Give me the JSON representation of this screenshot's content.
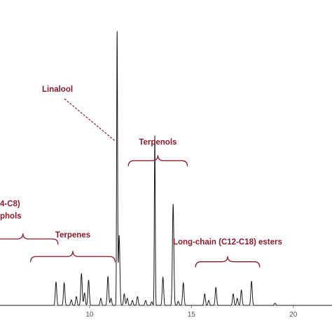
{
  "chart_data": {
    "type": "line",
    "title": "",
    "xlabel": "",
    "ylabel": "",
    "xlim": [
      5.6,
      21.9
    ],
    "ylim": [
      0,
      100
    ],
    "grid": false,
    "x_ticks": [
      {
        "value": 10,
        "label": "10"
      },
      {
        "value": 15,
        "label": "15"
      },
      {
        "value": 20,
        "label": "20"
      }
    ],
    "series": [
      {
        "peaks": [
          {
            "x": 8.35,
            "y": 8.5
          },
          {
            "x": 8.75,
            "y": 8.2
          },
          {
            "x": 9.1,
            "y": 2.0
          },
          {
            "x": 9.35,
            "y": 3.2
          },
          {
            "x": 9.6,
            "y": 11.6
          },
          {
            "x": 9.75,
            "y": 4.5
          },
          {
            "x": 9.95,
            "y": 9.2
          },
          {
            "x": 10.55,
            "y": 2.6
          },
          {
            "x": 10.9,
            "y": 10.5
          },
          {
            "x": 11.05,
            "y": 2.6
          },
          {
            "x": 11.35,
            "y": 100
          },
          {
            "x": 11.45,
            "y": 25.6
          },
          {
            "x": 11.7,
            "y": 4.2
          },
          {
            "x": 11.85,
            "y": 2.6
          },
          {
            "x": 12.1,
            "y": 1.8
          },
          {
            "x": 12.35,
            "y": 3.2
          },
          {
            "x": 12.75,
            "y": 1.8
          },
          {
            "x": 13.05,
            "y": 1.3
          },
          {
            "x": 13.2,
            "y": 61.9
          },
          {
            "x": 13.6,
            "y": 10.2
          },
          {
            "x": 14.1,
            "y": 36.9
          },
          {
            "x": 14.35,
            "y": 1.5
          },
          {
            "x": 14.6,
            "y": 8.2
          },
          {
            "x": 15.65,
            "y": 4.2
          },
          {
            "x": 15.85,
            "y": 1.8
          },
          {
            "x": 16.2,
            "y": 6.5
          },
          {
            "x": 17.05,
            "y": 4.2
          },
          {
            "x": 17.25,
            "y": 2.6
          },
          {
            "x": 17.45,
            "y": 5.6
          },
          {
            "x": 17.95,
            "y": 8.8
          },
          {
            "x": 19.1,
            "y": 0.8
          }
        ]
      }
    ],
    "annotations": [
      {
        "type": "label_leader",
        "text": "Linalool",
        "peak_x": 11.35,
        "peak_y": 59.7
      },
      {
        "type": "bracket",
        "text": "Terpenols",
        "x_start": 11.9,
        "x_end": 14.8,
        "y": 52.7,
        "text_y": 58.5
      },
      {
        "type": "bracket",
        "text": "Terpenes",
        "x_start": 7.1,
        "x_end": 11.25,
        "y": 17.8,
        "text_y": 24.7
      },
      {
        "type": "bracket",
        "text": "Long-chain (C12-C18) esters",
        "x_start": 15.2,
        "x_end": 18.35,
        "y": 15.9,
        "text_y": 22.2
      },
      {
        "type": "bracket",
        "lines": [
          "4-C8)",
          "phols"
        ],
        "x_start": 5.0,
        "x_end": 8.45,
        "y": 24.2,
        "text_y": 36.1,
        "text_y2": 31.6
      }
    ],
    "colors": {
      "trace": "#1a1a1a",
      "annotation": "#8b1a2c",
      "axis": "#888888"
    }
  }
}
